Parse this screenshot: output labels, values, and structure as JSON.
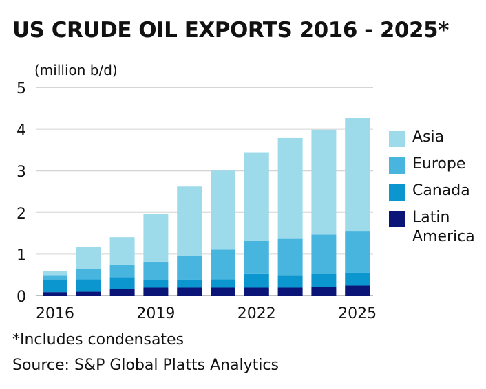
{
  "chart_data": {
    "type": "bar",
    "stacked": true,
    "title": "US CRUDE OIL EXPORTS 2016 - 2025*",
    "ylabel": "(million b/d)",
    "ylim": [
      0,
      5
    ],
    "yticks": [
      "0",
      "1",
      "2",
      "3",
      "4",
      "5"
    ],
    "grid": true,
    "categories": [
      "2016",
      "2017",
      "2018",
      "2019",
      "2020",
      "2021",
      "2022",
      "2023",
      "2024",
      "2025"
    ],
    "xtick_labels": [
      "2016",
      "",
      "",
      "2019",
      "",
      "",
      "2022",
      "",
      "",
      "2025"
    ],
    "legend_position": "right",
    "series": [
      {
        "name": "Latin America",
        "color": "#0a1577",
        "values": [
          0.08,
          0.09,
          0.16,
          0.19,
          0.19,
          0.19,
          0.19,
          0.19,
          0.21,
          0.24
        ]
      },
      {
        "name": "Canada",
        "color": "#0c96cf",
        "values": [
          0.29,
          0.3,
          0.28,
          0.18,
          0.19,
          0.2,
          0.34,
          0.3,
          0.31,
          0.31
        ]
      },
      {
        "name": "Europe",
        "color": "#48b5df",
        "values": [
          0.12,
          0.24,
          0.3,
          0.44,
          0.57,
          0.71,
          0.78,
          0.87,
          0.94,
          1.0
        ]
      },
      {
        "name": "Asia",
        "color": "#9ddbeb",
        "values": [
          0.09,
          0.54,
          0.66,
          1.15,
          1.67,
          1.9,
          2.13,
          2.42,
          2.52,
          2.72
        ]
      }
    ],
    "footnote": "*Includes condensates",
    "source": "Source: S&P Global Platts Analytics"
  },
  "legend": {
    "items": [
      {
        "label": "Asia",
        "color": "#9ddbeb"
      },
      {
        "label": "Europe",
        "color": "#48b5df"
      },
      {
        "label": "Canada",
        "color": "#0c96cf"
      },
      {
        "label": "Latin\nAmerica",
        "color": "#0a1577"
      }
    ]
  }
}
